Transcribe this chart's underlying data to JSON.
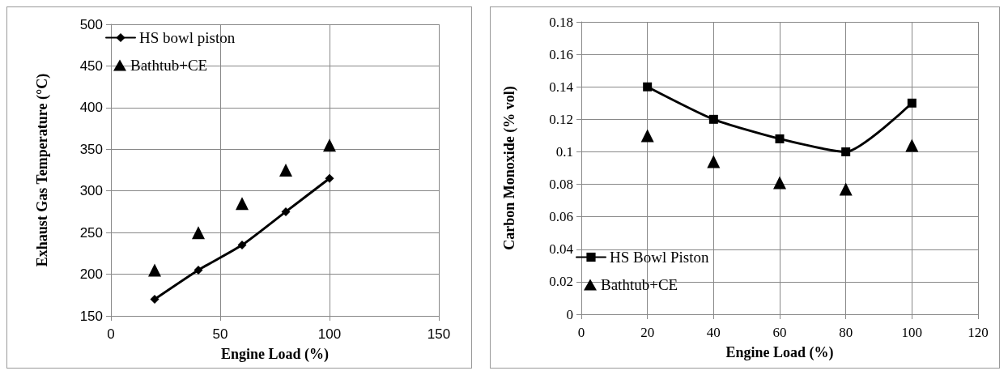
{
  "chart_data": [
    {
      "type": "line",
      "xlabel": "Engine Load (%)",
      "ylabel": "Exhaust Gas Temperature (°C)",
      "x": [
        20,
        40,
        60,
        80,
        100
      ],
      "xlim": [
        0,
        150
      ],
      "xticks": [
        0,
        50,
        100,
        150
      ],
      "ylim": [
        150,
        500
      ],
      "yticks": [
        150,
        200,
        250,
        300,
        350,
        400,
        450,
        500
      ],
      "grid": true,
      "legend": "top left",
      "line_style": "solid",
      "series": [
        {
          "name": "HS bowl piston",
          "color": "#000000",
          "marker": "diamond",
          "values": [
            170,
            205,
            235,
            275,
            315
          ]
        },
        {
          "name": "Bathtub+CE",
          "type": "scatter",
          "color": "#000000",
          "marker": "triangle",
          "values": [
            205,
            250,
            285,
            325,
            355
          ]
        }
      ]
    },
    {
      "type": "line",
      "xlabel": "Engine Load (%)",
      "ylabel": "Carbon Monoxide (% vol)",
      "x": [
        20,
        40,
        60,
        80,
        100
      ],
      "xlim": [
        0,
        120
      ],
      "xticks": [
        0,
        20,
        40,
        60,
        80,
        100,
        120
      ],
      "ylim": [
        0,
        0.18
      ],
      "yticks": [
        0,
        0.02,
        0.04,
        0.06,
        0.08,
        0.1,
        0.12,
        0.14,
        0.16,
        0.18
      ],
      "grid": true,
      "legend": "bottom left",
      "line_style": "solid",
      "series": [
        {
          "name": "HS Bowl Piston",
          "color": "#000000",
          "marker": "square",
          "values": [
            0.14,
            0.12,
            0.108,
            0.1,
            0.13
          ]
        },
        {
          "name": "Bathtub+CE",
          "type": "scatter",
          "color": "#000000",
          "marker": "triangle",
          "values": [
            0.11,
            0.094,
            0.081,
            0.077,
            0.104
          ]
        }
      ]
    }
  ]
}
